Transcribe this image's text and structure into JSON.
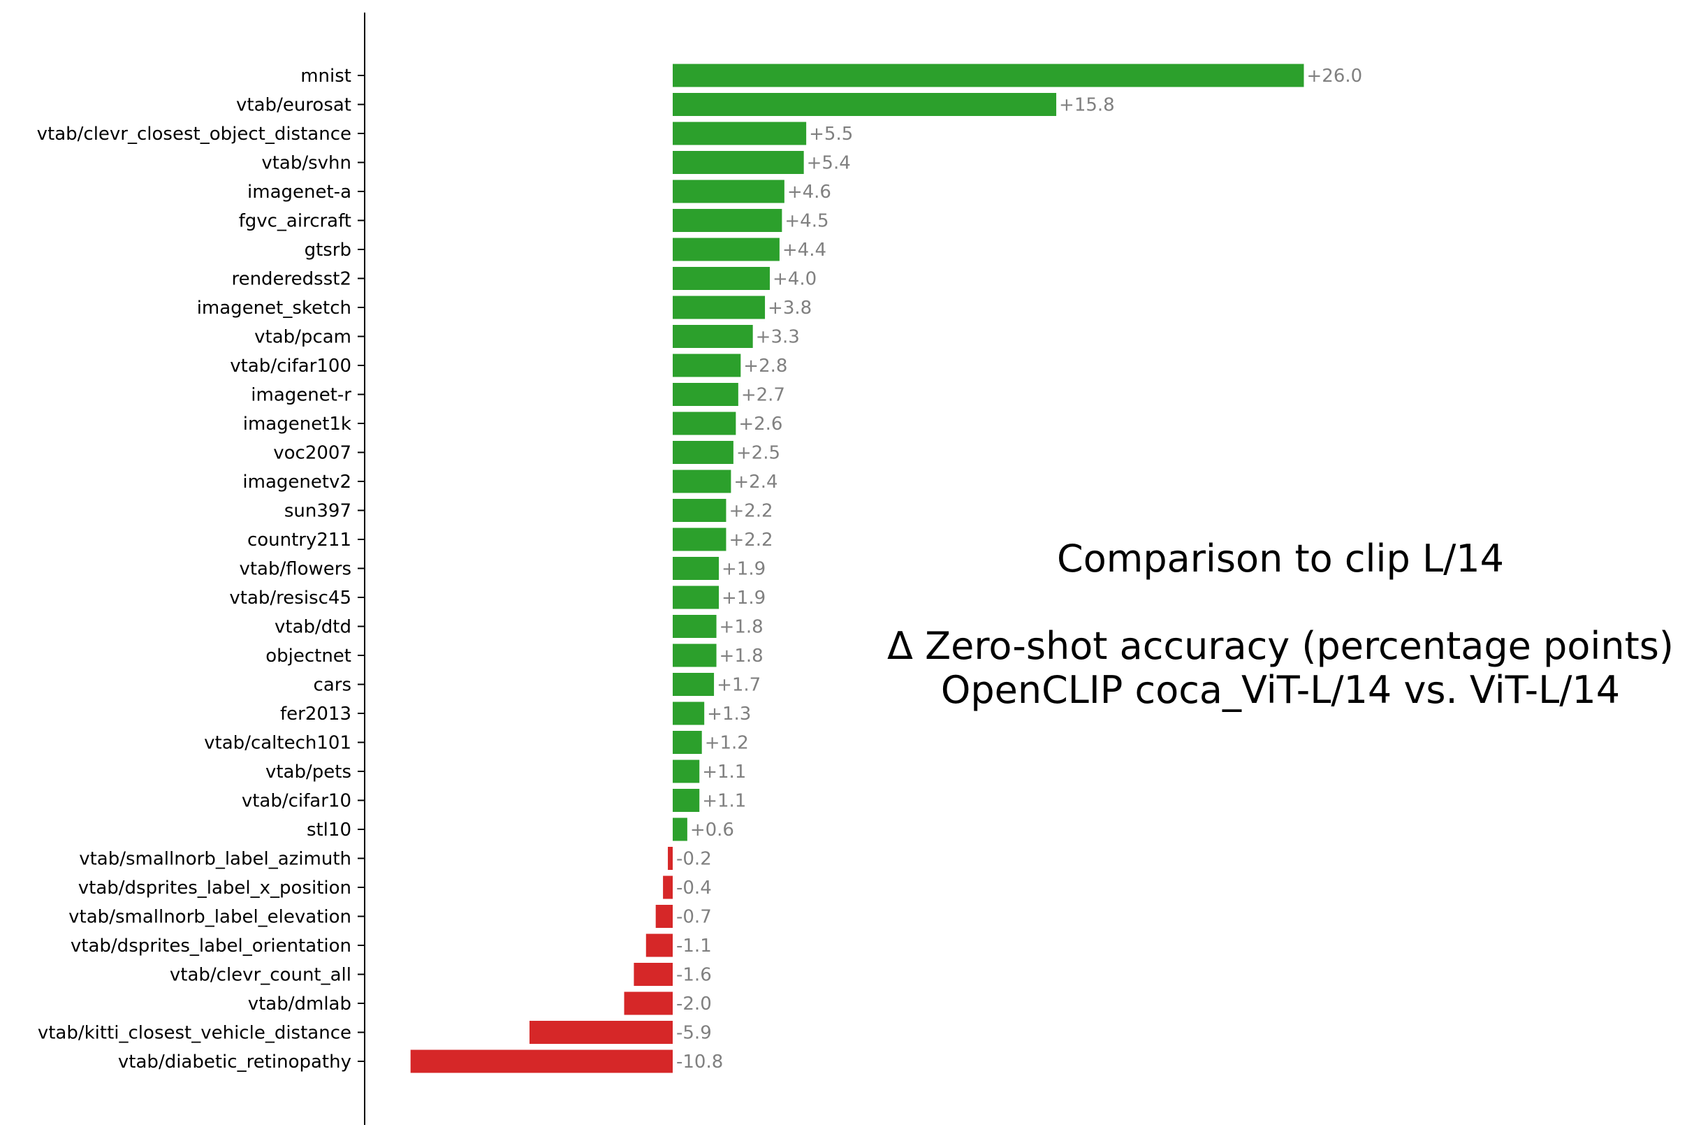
{
  "chart_data": {
    "type": "bar",
    "orientation": "horizontal",
    "title": "Comparison to clip L/14",
    "subtitle_lines": [
      "Δ Zero-shot accuracy (percentage points)",
      "OpenCLIP coca_ViT-L/14 vs. ViT-L/14"
    ],
    "xlabel": "",
    "ylabel": "",
    "xlim": [
      -12.0,
      27.0
    ],
    "grid": false,
    "legend": "none",
    "colors": {
      "positive": "#2ca02c",
      "negative": "#d62728",
      "value_label": "#808080",
      "axis": "#000000"
    },
    "categories": [
      "mnist",
      "vtab/eurosat",
      "vtab/clevr_closest_object_distance",
      "vtab/svhn",
      "imagenet-a",
      "fgvc_aircraft",
      "gtsrb",
      "renderedsst2",
      "imagenet_sketch",
      "vtab/pcam",
      "vtab/cifar100",
      "imagenet-r",
      "imagenet1k",
      "voc2007",
      "imagenetv2",
      "sun397",
      "country211",
      "vtab/flowers",
      "vtab/resisc45",
      "vtab/dtd",
      "objectnet",
      "cars",
      "fer2013",
      "vtab/caltech101",
      "vtab/pets",
      "vtab/cifar10",
      "stl10",
      "vtab/smallnorb_label_azimuth",
      "vtab/dsprites_label_x_position",
      "vtab/smallnorb_label_elevation",
      "vtab/dsprites_label_orientation",
      "vtab/clevr_count_all",
      "vtab/dmlab",
      "vtab/kitti_closest_vehicle_distance",
      "vtab/diabetic_retinopathy"
    ],
    "values": [
      26.0,
      15.8,
      5.5,
      5.4,
      4.6,
      4.5,
      4.4,
      4.0,
      3.8,
      3.3,
      2.8,
      2.7,
      2.6,
      2.5,
      2.4,
      2.2,
      2.2,
      1.9,
      1.9,
      1.8,
      1.8,
      1.7,
      1.3,
      1.2,
      1.1,
      1.1,
      0.6,
      -0.2,
      -0.4,
      -0.7,
      -1.1,
      -1.6,
      -2.0,
      -5.9,
      -10.8
    ],
    "value_labels": [
      "+26.0",
      "+15.8",
      "+5.5",
      "+5.4",
      "+4.6",
      "+4.5",
      "+4.4",
      "+4.0",
      "+3.8",
      "+3.3",
      "+2.8",
      "+2.7",
      "+2.6",
      "+2.5",
      "+2.4",
      "+2.2",
      "+2.2",
      "+1.9",
      "+1.9",
      "+1.8",
      "+1.8",
      "+1.7",
      "+1.3",
      "+1.2",
      "+1.1",
      "+1.1",
      "+0.6",
      "-0.2",
      "-0.4",
      "-0.7",
      "-1.1",
      "-1.6",
      "-2.0",
      "-5.9",
      "-10.8"
    ]
  }
}
